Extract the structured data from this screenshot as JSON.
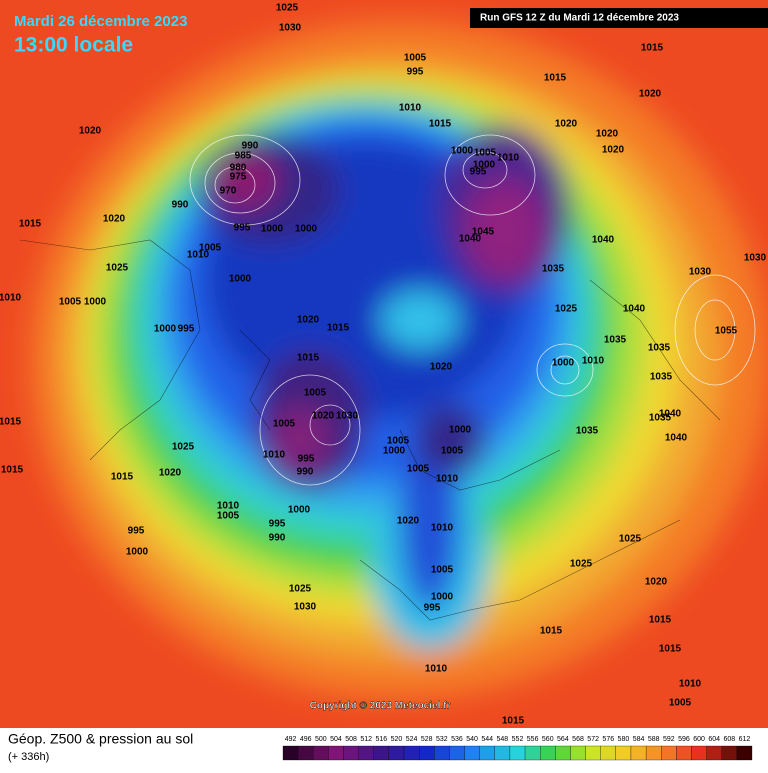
{
  "header": {
    "date": "Mardi 26 décembre 2023",
    "time": "13:00 locale",
    "run": "Run GFS 12 Z du Mardi 12 décembre 2023"
  },
  "map": {
    "isobar_labels": [
      1025,
      1030,
      1015,
      1020,
      1005,
      995,
      1015,
      1010,
      1015,
      1020,
      1020,
      1020,
      990,
      985,
      980,
      975,
      970,
      1005,
      1000,
      1000,
      995,
      1010,
      1020,
      990,
      995,
      1000,
      1000,
      1020,
      1015,
      1040,
      1045,
      1040,
      1005,
      1010,
      1025,
      1035,
      1030,
      1030,
      1000,
      1010,
      1005,
      1000,
      1020,
      1015,
      1025,
      1040,
      1000,
      995,
      1035,
      1035,
      1055,
      1015,
      1000,
      1010,
      1020,
      1035,
      1005,
      1020,
      1030,
      1005,
      1000,
      1035,
      1035,
      1040,
      1040,
      1015,
      1005,
      1000,
      1005,
      1025,
      1010,
      995,
      990,
      1015,
      1020,
      1015,
      1005,
      1010,
      1010,
      1005,
      1000,
      1020,
      1010,
      995,
      995,
      990,
      1025,
      1000,
      1005,
      1025,
      1020,
      1025,
      1030,
      995,
      1000,
      1015,
      1015,
      1010,
      1015,
      1010,
      1005,
      1015
    ]
  },
  "footer": {
    "copyright": "Copyright © 2023 Meteociel.fr",
    "title": "Géop. Z500 & pression au sol",
    "lead": "(+ 336h)",
    "scale": [
      492,
      496,
      500,
      504,
      508,
      512,
      516,
      520,
      524,
      528,
      532,
      536,
      540,
      544,
      548,
      552,
      556,
      560,
      564,
      568,
      572,
      576,
      580,
      584,
      588,
      592,
      596,
      600,
      604,
      608,
      612
    ]
  }
}
